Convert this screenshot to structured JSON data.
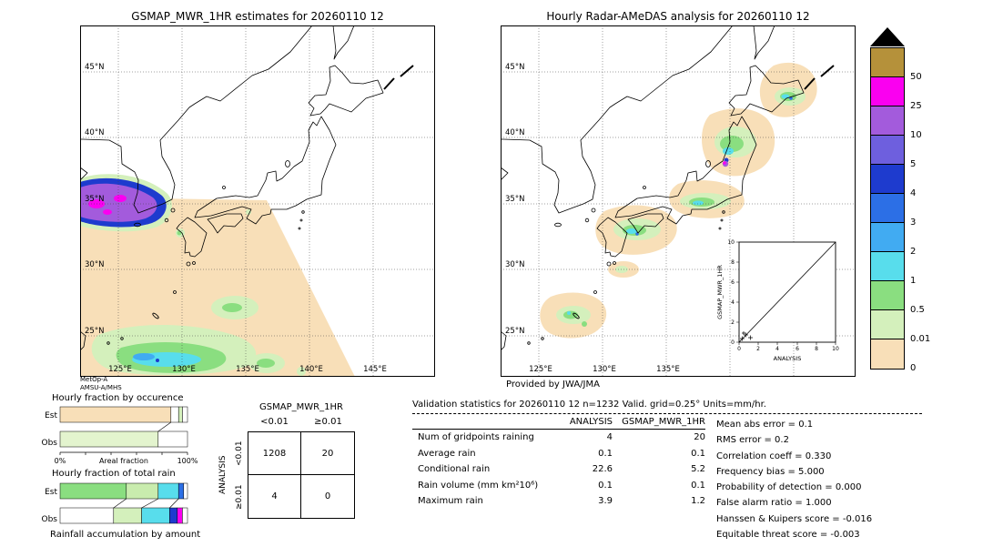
{
  "figure": {
    "background": "#ffffff"
  },
  "left_map": {
    "title": "GSMAP_MWR_1HR estimates for 20260110 12",
    "sensor_line1": "MetOp-A",
    "sensor_line2": "AMSU-A/MHS",
    "lat_labels": [
      "45°N",
      "40°N",
      "35°N",
      "30°N",
      "25°N"
    ],
    "lon_labels": [
      "125°E",
      "130°E",
      "135°E",
      "140°E",
      "145°E"
    ]
  },
  "right_map": {
    "title": "Hourly Radar-AMeDAS analysis for 20260110 12",
    "credit": "Provided by JWA/JMA",
    "lat_labels": [
      "45°N",
      "40°N",
      "35°N",
      "30°N",
      "25°N"
    ],
    "lon_labels": [
      "125°E",
      "130°E",
      "135°E"
    ],
    "inset": {
      "ylabel": "GSMAP_MWR_1HR",
      "xlabel": "ANALYSIS",
      "ticks": [
        "0",
        "2",
        "4",
        "6",
        "8",
        "10"
      ]
    }
  },
  "colorbar": {
    "units": "mm/hr",
    "blocks": [
      {
        "color": "#B5913A",
        "label": "50"
      },
      {
        "color": "#FA00F0",
        "label": "25"
      },
      {
        "color": "#A35BDC",
        "label": "10"
      },
      {
        "color": "#6E5FDE",
        "label": "5"
      },
      {
        "color": "#1E3BCE",
        "label": "4"
      },
      {
        "color": "#2C6FE6",
        "label": "3"
      },
      {
        "color": "#41ABF2",
        "label": "2"
      },
      {
        "color": "#58DDEC",
        "label": "1"
      },
      {
        "color": "#8ADE80",
        "label": "0.5"
      },
      {
        "color": "#D4F0BC",
        "label": "0.01"
      },
      {
        "color": "#F8DFB8",
        "label": "0"
      }
    ]
  },
  "fraction_charts": {
    "occurrence": {
      "title": "Hourly fraction by occurence",
      "rows": [
        "Est",
        "Obs"
      ],
      "est_segments": [
        {
          "color": "#F8DFB8",
          "pct": 87
        },
        {
          "color": "#FFFFFF",
          "pct": 6
        },
        {
          "color": "#D4F0BC",
          "pct": 3
        },
        {
          "color": "#FFFFFF",
          "pct": 4
        }
      ],
      "obs_segments": [
        {
          "color": "#E3F4CE",
          "pct": 77
        },
        {
          "color": "#FFFFFF",
          "pct": 23
        }
      ],
      "connectors": [
        {
          "from": 87,
          "to": 77
        }
      ],
      "axis": {
        "left": "0%",
        "label": "Areal fraction",
        "right": "100%"
      }
    },
    "total_rain": {
      "title": "Hourly fraction of total rain",
      "rows": [
        "Est",
        "Obs"
      ],
      "est_segments": [
        {
          "color": "#8ADE80",
          "pct": 52
        },
        {
          "color": "#C9ECAE",
          "pct": 25
        },
        {
          "color": "#58DDEC",
          "pct": 16
        },
        {
          "color": "#2C6FE6",
          "pct": 4
        },
        {
          "color": "#FFFFFF",
          "pct": 3
        }
      ],
      "obs_segments": [
        {
          "color": "#FFFFFF",
          "pct": 42
        },
        {
          "color": "#D4F0BC",
          "pct": 22
        },
        {
          "color": "#58DDEC",
          "pct": 22
        },
        {
          "color": "#1E3BCE",
          "pct": 6
        },
        {
          "color": "#FA00F0",
          "pct": 4
        },
        {
          "color": "#FFFFFF",
          "pct": 4
        }
      ],
      "connectors": [
        {
          "from": 52,
          "to": 42
        },
        {
          "from": 77,
          "to": 64
        },
        {
          "from": 93,
          "to": 86
        }
      ],
      "caption": "Rainfall accumulation by amount"
    }
  },
  "contingency": {
    "title": "GSMAP_MWR_1HR",
    "col_labels": [
      "<0.01",
      "≥0.01"
    ],
    "row_axis_label": "ANALYSIS",
    "row_labels": [
      "<0.01",
      "≥0.01"
    ],
    "cells": [
      [
        "1208",
        "20"
      ],
      [
        "4",
        "0"
      ]
    ]
  },
  "validation": {
    "title": "Validation statistics for 20260110 12  n=1232 Valid. grid=0.25° Units=mm/hr.",
    "col_headers": [
      "ANALYSIS",
      "GSMAP_MWR_1HR"
    ],
    "rows": [
      {
        "label": "Num of gridpoints raining",
        "analysis": "4",
        "gsmap": "20"
      },
      {
        "label": "Average rain",
        "analysis": "0.1",
        "gsmap": "0.1"
      },
      {
        "label": "Conditional rain",
        "analysis": "22.6",
        "gsmap": "5.2"
      },
      {
        "label": "Rain volume (mm km²10⁶)",
        "analysis": "0.1",
        "gsmap": "0.1"
      },
      {
        "label": "Maximum rain",
        "analysis": "3.9",
        "gsmap": "1.2"
      }
    ],
    "stats": [
      {
        "label": "Mean abs error",
        "value": "0.1"
      },
      {
        "label": "RMS error",
        "value": "0.2"
      },
      {
        "label": "Correlation coeff",
        "value": "0.330"
      },
      {
        "label": "Frequency bias",
        "value": "5.000"
      },
      {
        "label": "Probability of detection",
        "value": "0.000"
      },
      {
        "label": "False alarm ratio",
        "value": "1.000"
      },
      {
        "label": "Hanssen & Kuipers score",
        "value": "-0.016"
      },
      {
        "label": "Equitable threat score",
        "value": "-0.003"
      }
    ]
  },
  "chart_data": [
    {
      "type": "heatmap",
      "subtype": "precipitation-map",
      "title": "GSMAP_MWR_1HR estimates for 20260110 12",
      "sensor": "MetOp-A AMSU-A/MHS",
      "units": "mm/hr",
      "lat_range": [
        "25°N",
        "45°N"
      ],
      "lon_range": [
        "125°E",
        "145°E"
      ],
      "legend_boundaries": [
        0,
        0.01,
        0.5,
        1,
        2,
        3,
        4,
        5,
        10,
        25,
        50
      ],
      "features": [
        "diagonal satellite swath (0–0.01 mm/hr, peach) covering the south-west of the domain",
        "intense rain cell 10–50 mm/hr (purple/magenta ringed by dark blue) near 34N 122-124E",
        "light rain band 0.01–3 mm/hr (green with cyan core) near 24–26N 125–133E",
        "small light-rain patch near 28N 134E"
      ]
    },
    {
      "type": "heatmap",
      "subtype": "precipitation-map",
      "title": "Hourly Radar-AMeDAS analysis for 20260110 12",
      "credit": "Provided by JWA/JMA",
      "units": "mm/hr",
      "features": [
        "light rain (0.01–3 mm/hr) bands along the Japan archipelago: Hokkaido, Tohoku, Pacific coast, Shikoku/Kyushu, Okinawa",
        "intense cell ~10–50 mm/hr (purple/magenta) on NW Honshu coast near 38N 139.5E"
      ]
    },
    {
      "type": "scatter",
      "title": "GSMAP_MWR_1HR vs ANALYSIS (inset)",
      "xlabel": "ANALYSIS",
      "ylabel": "GSMAP_MWR_1HR",
      "xlim": [
        0,
        10
      ],
      "ylim": [
        0,
        10
      ],
      "diagonal_reference": true,
      "points_estimated": [
        [
          0.1,
          0.1
        ],
        [
          0.3,
          0.2
        ],
        [
          0.6,
          0.1
        ],
        [
          1.2,
          0.4
        ],
        [
          3.9,
          1.2
        ]
      ]
    },
    {
      "type": "table",
      "title": "Contingency table (threshold 0.01 mm/hr)",
      "columns": [
        "GSMAP_MWR_1HR <0.01",
        "GSMAP_MWR_1HR ≥0.01"
      ],
      "rows": [
        "ANALYSIS <0.01",
        "ANALYSIS ≥0.01"
      ],
      "values": [
        [
          1208,
          20
        ],
        [
          4,
          0
        ]
      ]
    },
    {
      "type": "table",
      "title": "Validation statistics for 20260110 12  n=1232 Valid. grid=0.25° Units=mm/hr.",
      "columns": [
        "metric",
        "ANALYSIS",
        "GSMAP_MWR_1HR"
      ],
      "values": [
        [
          "Num of gridpoints raining",
          4,
          20
        ],
        [
          "Average rain",
          0.1,
          0.1
        ],
        [
          "Conditional rain",
          22.6,
          5.2
        ],
        [
          "Rain volume (mm km²10⁶)",
          0.1,
          0.1
        ],
        [
          "Maximum rain",
          3.9,
          1.2
        ]
      ],
      "scores": {
        "Mean abs error": 0.1,
        "RMS error": 0.2,
        "Correlation coeff": 0.33,
        "Frequency bias": 5.0,
        "Probability of detection": 0.0,
        "False alarm ratio": 1.0,
        "Hanssen & Kuipers score": -0.016,
        "Equitable threat score": -0.003
      }
    },
    {
      "type": "bar",
      "title": "Hourly fraction by occurence",
      "orientation": "horizontal stacked",
      "categories": [
        "Est",
        "Obs"
      ],
      "xlabel": "Areal fraction",
      "xlim_pct": [
        0,
        100
      ],
      "series_estimated_pct": {
        "Est": {
          "0-0.01": 87,
          "none": 10,
          "0.01-0.5": 3
        },
        "Obs": {
          "0.01-0.5": 77,
          "none": 23
        }
      }
    },
    {
      "type": "bar",
      "title": "Hourly fraction of total rain",
      "orientation": "horizontal stacked",
      "categories": [
        "Est",
        "Obs"
      ],
      "caption": "Rainfall accumulation by amount",
      "series_estimated_pct": {
        "Est": {
          "0.5-1": 52,
          "0.01-0.5": 25,
          "1-2": 16,
          "3-4": 4,
          "none": 3
        },
        "Obs": {
          "none": 46,
          "0.01-0.5": 22,
          "1-2": 22,
          "4-5": 6,
          "25-50": 4
        }
      }
    }
  ]
}
